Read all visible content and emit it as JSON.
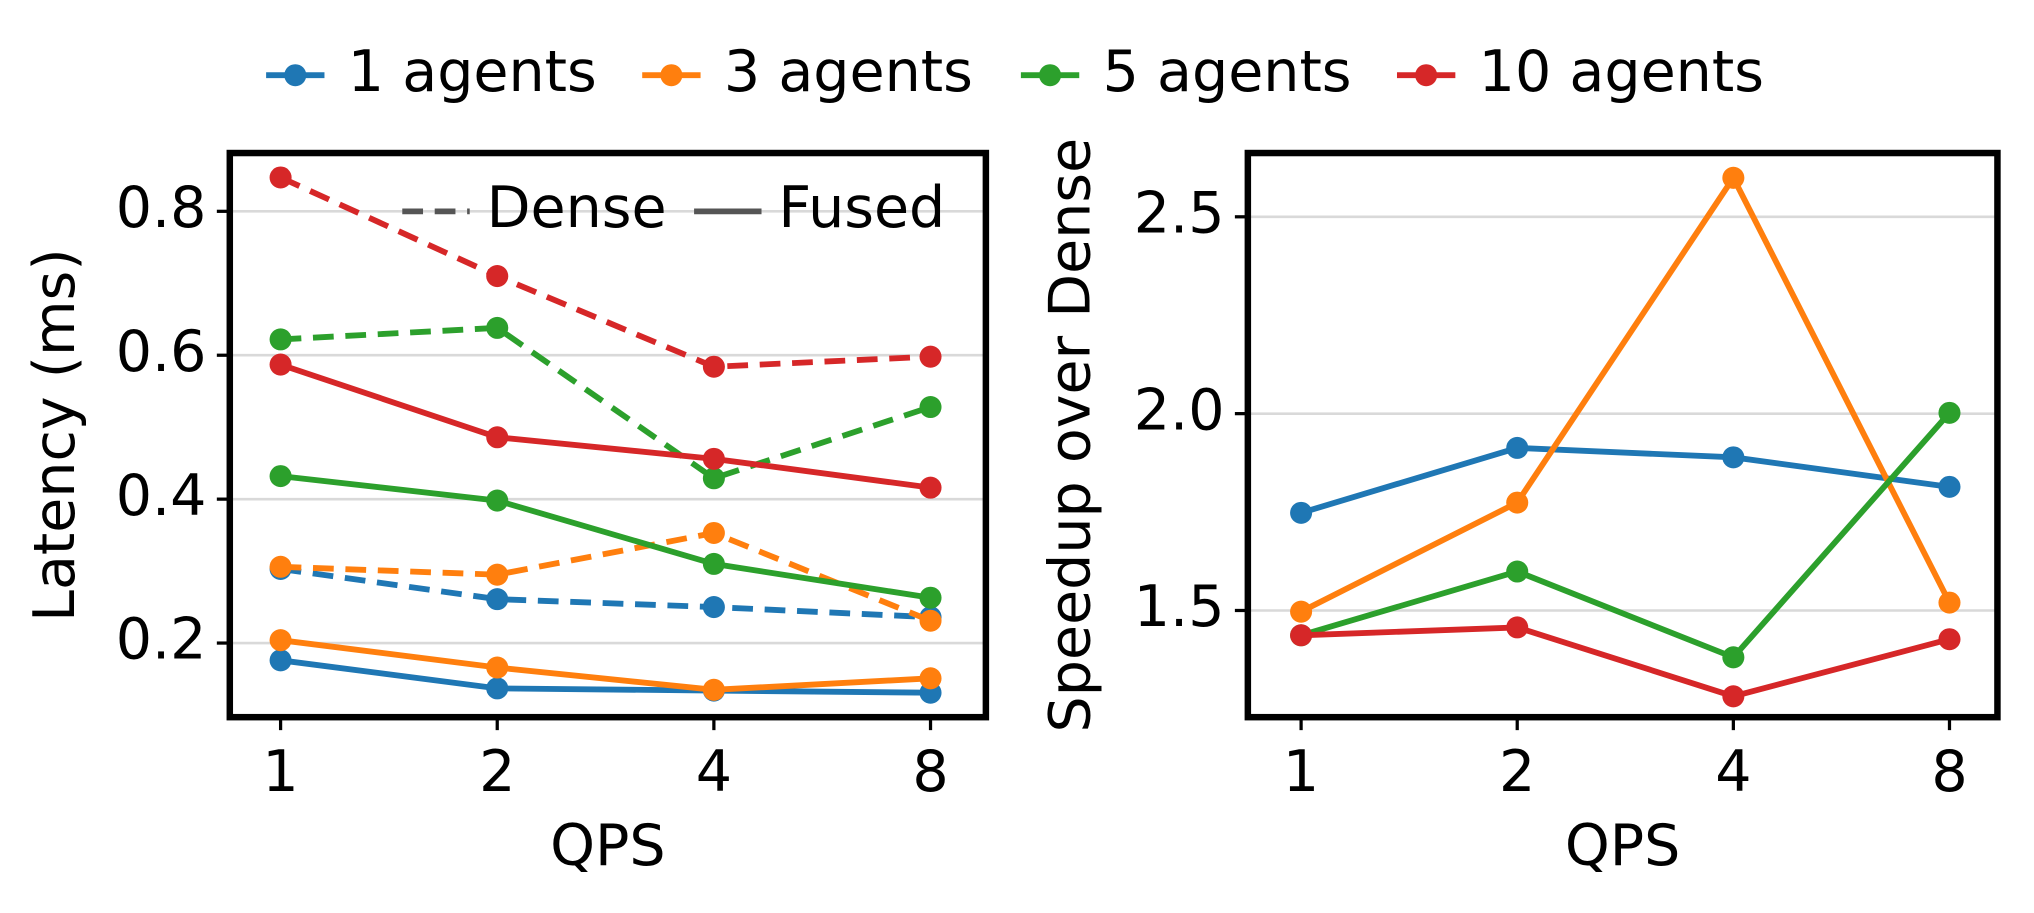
{
  "chart_data": [
    {
      "type": "line",
      "xlabel": "QPS",
      "ylabel": "Latency (ms)",
      "xscale": "log",
      "x": [
        1,
        2,
        4,
        8
      ],
      "xlim": [
        0.85,
        9.55
      ],
      "xticks": [
        1,
        2,
        4,
        8
      ],
      "ylim": [
        0.097,
        0.881
      ],
      "yticks": [
        0.2,
        0.4,
        0.6,
        0.8
      ],
      "grid": true,
      "legend": "top",
      "line_styles": [
        {
          "name": "Dense",
          "dashed": true
        },
        {
          "name": "Fused",
          "dashed": false
        }
      ],
      "style_legend": "upper right",
      "series": [
        {
          "name": "1 agents",
          "color": "#1f77b4",
          "values": {
            "Dense": [
              0.303,
              0.261,
              0.25,
              0.236
            ],
            "Fused": [
              0.176,
              0.137,
              0.134,
              0.131
            ]
          }
        },
        {
          "name": "3 agents",
          "color": "#ff7f0e",
          "values": {
            "Dense": [
              0.306,
              0.295,
              0.353,
              0.231
            ],
            "Fused": [
              0.204,
              0.166,
              0.135,
              0.151
            ]
          }
        },
        {
          "name": "5 agents",
          "color": "#2ca02c",
          "values": {
            "Dense": [
              0.622,
              0.638,
              0.429,
              0.528
            ],
            "Fused": [
              0.432,
              0.398,
              0.31,
              0.263
            ]
          }
        },
        {
          "name": "10 agents",
          "color": "#d62728",
          "values": {
            "Dense": [
              0.847,
              0.71,
              0.584,
              0.598
            ],
            "Fused": [
              0.587,
              0.486,
              0.456,
              0.416
            ]
          }
        }
      ]
    },
    {
      "type": "line",
      "xlabel": "QPS",
      "ylabel": "Speedup over Dense",
      "xscale": "log",
      "x": [
        1,
        2,
        4,
        8
      ],
      "xlim": [
        0.843,
        9.33
      ],
      "xticks": [
        1,
        2,
        4,
        8
      ],
      "ylim": [
        1.229,
        2.662
      ],
      "yticks": [
        1.5,
        {
          "value": 2,
          "label": "2.0"
        },
        2.5
      ],
      "grid": true,
      "series": [
        {
          "color": "#1f77b4",
          "values": [
            1.748,
            1.913,
            1.889,
            1.814
          ]
        },
        {
          "color": "#ff7f0e",
          "values": [
            1.497,
            1.774,
            2.599,
            1.52
          ]
        },
        {
          "color": "#2ca02c",
          "values": [
            1.437,
            1.599,
            1.381,
            2.002
          ]
        },
        {
          "color": "#d62728",
          "values": [
            1.437,
            1.457,
            1.282,
            1.427
          ]
        }
      ]
    }
  ]
}
